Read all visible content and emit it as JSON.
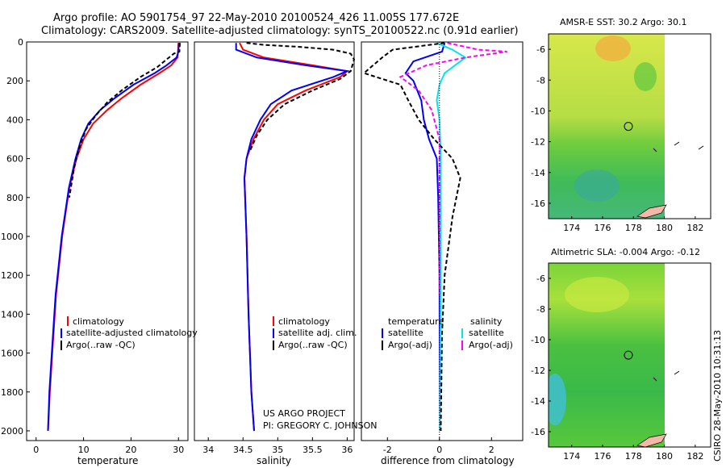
{
  "header": {
    "line1": "Argo profile: AO 5901754_97 22-May-2010 20100524_426 11.005S 177.672E",
    "line2": "Climatology: CARS2009. Satellite-adjusted climatology: synTS_20100522.nc (0.91d earlier)"
  },
  "credits": {
    "project": "US ARGO PROJECT",
    "pi": "PI: GREGORY C. JOHNSON",
    "stamp": "CSIRO 28-May-2010 10:31:13"
  },
  "colors": {
    "climatology": "#ff0000",
    "satellite": "#0000ff",
    "argo": "#000000",
    "sal_satellite": "#00e5ee",
    "sal_argo": "#ff00ff"
  },
  "chart_data": [
    {
      "type": "line",
      "id": "temperature",
      "xlabel": "temperature",
      "ylabel": "",
      "xlim": [
        -2,
        32
      ],
      "ylim": [
        2050,
        0
      ],
      "xticks": [
        "0",
        "10",
        "20",
        "30"
      ],
      "xtick_values": [
        0,
        10,
        20,
        30
      ],
      "yticks": [
        "0",
        "200",
        "400",
        "600",
        "800",
        "1000",
        "1200",
        "1400",
        "1600",
        "1800",
        "2000"
      ],
      "ytick_values": [
        0,
        200,
        400,
        600,
        800,
        1000,
        1200,
        1400,
        1600,
        1800,
        2000
      ],
      "legend": [
        "climatology",
        "satellite-adjusted climatology",
        "Argo(..raw -QC)"
      ],
      "series": [
        {
          "name": "climatology",
          "color": "#ff0000",
          "dash": "",
          "points": [
            [
              30,
              5
            ],
            [
              29.9,
              50
            ],
            [
              29.8,
              80
            ],
            [
              28.5,
              120
            ],
            [
              26,
              160
            ],
            [
              22,
              220
            ],
            [
              18,
              290
            ],
            [
              15,
              350
            ],
            [
              12,
              420
            ],
            [
              10,
              500
            ],
            [
              8.5,
              600
            ],
            [
              7,
              750
            ],
            [
              5.5,
              1000
            ],
            [
              4.2,
              1300
            ],
            [
              3.4,
              1600
            ],
            [
              2.9,
              1800
            ],
            [
              2.5,
              2000
            ]
          ]
        },
        {
          "name": "satellite-adjusted climatology",
          "color": "#0000ff",
          "dash": "",
          "points": [
            [
              30.1,
              5
            ],
            [
              30,
              50
            ],
            [
              29.6,
              80
            ],
            [
              27.5,
              120
            ],
            [
              25,
              160
            ],
            [
              20.5,
              220
            ],
            [
              16.5,
              290
            ],
            [
              13.5,
              350
            ],
            [
              11,
              420
            ],
            [
              9.5,
              500
            ],
            [
              8.3,
              600
            ],
            [
              6.9,
              750
            ],
            [
              5.4,
              1000
            ],
            [
              4.1,
              1300
            ],
            [
              3.3,
              1600
            ],
            [
              2.8,
              1800
            ],
            [
              2.5,
              2000
            ]
          ]
        },
        {
          "name": "Argo(..raw -QC)",
          "color": "#000000",
          "dash": "5,3",
          "points": [
            [
              30.3,
              5
            ],
            [
              30.2,
              50
            ],
            [
              29,
              60
            ],
            [
              27.5,
              90
            ],
            [
              25.5,
              130
            ],
            [
              22,
              180
            ],
            [
              18,
              250
            ],
            [
              15,
              310
            ],
            [
              12.5,
              380
            ],
            [
              10.5,
              450
            ],
            [
              9,
              550
            ],
            [
              8,
              650
            ],
            [
              7,
              800
            ]
          ]
        }
      ]
    },
    {
      "type": "line",
      "id": "salinity",
      "xlabel": "salinity",
      "xlim": [
        33.8,
        36.1
      ],
      "ylim": [
        2050,
        0
      ],
      "xticks": [
        "34",
        "34.5",
        "35",
        "35.5",
        "36"
      ],
      "xtick_values": [
        34,
        34.5,
        35,
        35.5,
        36
      ],
      "legend": [
        "climatology",
        "satellite adj. clim.",
        "Argo(..raw -QC)"
      ],
      "series": [
        {
          "name": "climatology",
          "color": "#ff0000",
          "dash": "",
          "points": [
            [
              34.45,
              5
            ],
            [
              34.5,
              40
            ],
            [
              34.8,
              80
            ],
            [
              35.5,
              120
            ],
            [
              36.0,
              150
            ],
            [
              35.9,
              180
            ],
            [
              35.4,
              250
            ],
            [
              35.0,
              320
            ],
            [
              34.8,
              400
            ],
            [
              34.65,
              500
            ],
            [
              34.55,
              600
            ],
            [
              34.52,
              700
            ],
            [
              34.55,
              1000
            ],
            [
              34.58,
              1400
            ],
            [
              34.62,
              1800
            ],
            [
              34.66,
              2000
            ]
          ]
        },
        {
          "name": "satellite adj. clim.",
          "color": "#0000ff",
          "dash": "",
          "points": [
            [
              34.4,
              5
            ],
            [
              34.4,
              40
            ],
            [
              34.7,
              80
            ],
            [
              35.4,
              120
            ],
            [
              36.0,
              150
            ],
            [
              35.8,
              180
            ],
            [
              35.2,
              250
            ],
            [
              34.9,
              320
            ],
            [
              34.75,
              400
            ],
            [
              34.62,
              500
            ],
            [
              34.55,
              600
            ],
            [
              34.52,
              700
            ],
            [
              34.55,
              1000
            ],
            [
              34.58,
              1400
            ],
            [
              34.62,
              1800
            ],
            [
              34.66,
              2000
            ]
          ]
        },
        {
          "name": "Argo(..raw -QC)",
          "color": "#000000",
          "dash": "5,3",
          "points": [
            [
              34.55,
              5
            ],
            [
              34.8,
              15
            ],
            [
              35.3,
              25
            ],
            [
              35.8,
              40
            ],
            [
              36.05,
              60
            ],
            [
              36.1,
              90
            ],
            [
              36.05,
              150
            ],
            [
              35.9,
              190
            ],
            [
              35.5,
              250
            ],
            [
              35.1,
              320
            ],
            [
              34.85,
              400
            ],
            [
              34.7,
              480
            ],
            [
              34.6,
              560
            ]
          ]
        }
      ]
    },
    {
      "type": "line",
      "id": "difference",
      "xlabel": "difference from climatology",
      "xlim": [
        -3,
        3.2
      ],
      "ylim": [
        2050,
        0
      ],
      "xticks": [
        "-2",
        "0",
        "2"
      ],
      "xtick_values": [
        -2,
        0,
        2
      ],
      "legend": [
        "temperature",
        "salinity",
        "satellite",
        "satellite",
        "Argo(-adj)",
        "Argo(-adj)"
      ],
      "series": [
        {
          "name": "temperature satellite",
          "color": "#0000ff",
          "dash": "",
          "points": [
            [
              0.2,
              5
            ],
            [
              0.1,
              50
            ],
            [
              -1,
              100
            ],
            [
              -1.3,
              160
            ],
            [
              -1.0,
              200
            ],
            [
              -0.7,
              300
            ],
            [
              -0.6,
              400
            ],
            [
              -0.4,
              500
            ],
            [
              -0.1,
              600
            ],
            [
              -0.05,
              800
            ],
            [
              0,
              1200
            ],
            [
              0.02,
              2000
            ]
          ]
        },
        {
          "name": "salinity satellite",
          "color": "#00e5ee",
          "dash": "",
          "points": [
            [
              -0.1,
              5
            ],
            [
              0.5,
              40
            ],
            [
              1.0,
              80
            ],
            [
              0.6,
              120
            ],
            [
              0.2,
              160
            ],
            [
              0,
              220
            ],
            [
              -0.1,
              300
            ],
            [
              0,
              400
            ],
            [
              0.05,
              600
            ],
            [
              0.05,
              1000
            ],
            [
              0.02,
              2000
            ]
          ]
        },
        {
          "name": "temperature Argo(-adj)",
          "color": "#000000",
          "dash": "5,3",
          "points": [
            [
              0.2,
              5
            ],
            [
              -1.8,
              40
            ],
            [
              -2.2,
              80
            ],
            [
              -2.9,
              160
            ],
            [
              -1.5,
              220
            ],
            [
              -1.2,
              300
            ],
            [
              -0.8,
              400
            ],
            [
              -0.2,
              500
            ],
            [
              0.5,
              600
            ],
            [
              0.8,
              700
            ],
            [
              0.5,
              900
            ],
            [
              0.2,
              1200
            ],
            [
              0.1,
              1500
            ],
            [
              0.05,
              2000
            ]
          ]
        },
        {
          "name": "salinity Argo(-adj)",
          "color": "#ff00ff",
          "dash": "5,3",
          "points": [
            [
              0.3,
              5
            ],
            [
              1.5,
              40
            ],
            [
              2.6,
              50
            ],
            [
              1.0,
              80
            ],
            [
              -0.5,
              120
            ],
            [
              -1.5,
              180
            ],
            [
              -0.8,
              250
            ],
            [
              -0.3,
              350
            ],
            [
              0,
              500
            ],
            [
              0,
              800
            ],
            [
              0,
              1100
            ],
            [
              0,
              1300
            ]
          ]
        }
      ]
    },
    {
      "type": "heatmap",
      "id": "sst_map",
      "title": "AMSR-E SST: 30.2 Argo: 30.1",
      "xlim": [
        172.5,
        183
      ],
      "ylim": [
        -17,
        -5
      ],
      "xticks": [
        "174",
        "176",
        "178",
        "180",
        "182"
      ],
      "xtick_values": [
        174,
        176,
        178,
        180,
        182
      ],
      "yticks": [
        "-6",
        "-8",
        "-10",
        "-12",
        "-14",
        "-16"
      ],
      "ytick_values": [
        -6,
        -8,
        -10,
        -12,
        -14,
        -16
      ],
      "profile_location": [
        177.672,
        -11.005
      ]
    },
    {
      "type": "heatmap",
      "id": "sla_map",
      "title": "Altimetric SLA: -0.004 Argo: -0.12",
      "xlim": [
        172.5,
        183
      ],
      "ylim": [
        -17,
        -5
      ],
      "xticks": [
        "174",
        "176",
        "178",
        "180",
        "182"
      ],
      "xtick_values": [
        174,
        176,
        178,
        180,
        182
      ],
      "yticks": [
        "-6",
        "-8",
        "-10",
        "-12",
        "-14",
        "-16"
      ],
      "ytick_values": [
        -6,
        -8,
        -10,
        -12,
        -14,
        -16
      ],
      "profile_location": [
        177.672,
        -11.005
      ]
    }
  ]
}
